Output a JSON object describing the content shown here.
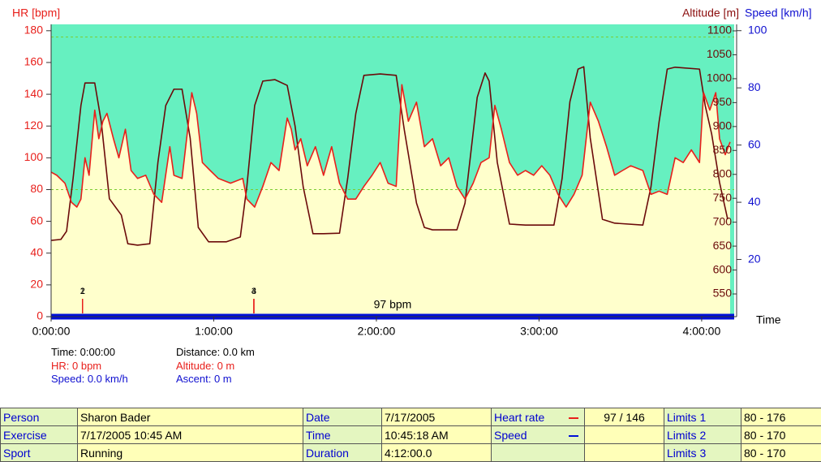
{
  "chart_data": {
    "type": "line",
    "ylabel": "HR [bpm]",
    "y2label": "Altitude [m]",
    "y3label": "Speed [km/h]",
    "xlabel": "Time",
    "xlim": [
      0,
      252
    ],
    "xticks": [
      {
        "value": 0,
        "label": "0:00:00"
      },
      {
        "value": 60,
        "label": "1:00:00"
      },
      {
        "value": 120,
        "label": "2:00:00"
      },
      {
        "value": 180,
        "label": "3:00:00"
      },
      {
        "value": 240,
        "label": "4:00:00"
      }
    ],
    "ylim": [
      0,
      184
    ],
    "yticks": [
      0,
      20,
      40,
      60,
      80,
      100,
      120,
      140,
      160,
      180
    ],
    "y2lim": [
      502.5,
      1113.6
    ],
    "y2ticks": [
      550,
      600,
      650,
      700,
      750,
      800,
      850,
      900,
      950,
      1000,
      1050,
      1100
    ],
    "y3lim": [
      0,
      102.2
    ],
    "y3ticks": [
      20,
      40,
      60,
      80,
      100
    ],
    "hr_limits": [
      80,
      176
    ],
    "series": [
      {
        "name": "Heart rate",
        "color": "#e8201c",
        "axis": "y",
        "fill": "#ffffcc",
        "x": [
          0,
          2.1,
          5.1,
          7.5,
          9.5,
          11.0,
          12.5,
          14.0,
          16.1,
          17.6,
          19.1,
          20.6,
          23.0,
          25.0,
          27.4,
          29.5,
          31.9,
          34.9,
          37.9,
          40.8,
          43.8,
          45.3,
          48.3,
          50.4,
          51.9,
          53.7,
          55.8,
          58.7,
          61.7,
          66.2,
          70.7,
          72.2,
          75.1,
          78.1,
          81.1,
          84.1,
          87.1,
          88.6,
          90.0,
          92.1,
          94.5,
          97.5,
          100.5,
          103.5,
          106.4,
          109.4,
          112.4,
          115.4,
          118.4,
          121.4,
          124.3,
          127.3,
          129.4,
          131.8,
          134.8,
          137.7,
          140.7,
          143.7,
          146.7,
          149.7,
          152.7,
          155.7,
          158.6,
          161.6,
          163.7,
          166.1,
          169.1,
          172.1,
          175.0,
          178.0,
          181.0,
          184.0,
          187.0,
          190.0,
          192.9,
          195.9,
          198.9,
          201.9,
          204.9,
          207.9,
          210.8,
          213.8,
          218.3,
          221.3,
          224.3,
          227.3,
          230.2,
          233.2,
          236.2,
          239.2,
          240.7,
          243.0,
          245.2,
          246.6,
          248.7,
          250.5
        ],
        "values": [
          91,
          89,
          84,
          72,
          69,
          74,
          100,
          89,
          130,
          112,
          123,
          128,
          112,
          100,
          118,
          92,
          87,
          89,
          77,
          72,
          107,
          89,
          87,
          118,
          141,
          128,
          97,
          92,
          87,
          84,
          87,
          74,
          69,
          82,
          97,
          92,
          125,
          118,
          105,
          112,
          95,
          107,
          89,
          107,
          84,
          74,
          74,
          82,
          89,
          97,
          84,
          82,
          146,
          123,
          135,
          107,
          112,
          95,
          100,
          82,
          74,
          84,
          97,
          100,
          133,
          118,
          97,
          89,
          92,
          89,
          95,
          89,
          77,
          69,
          77,
          89,
          135,
          123,
          107,
          89,
          92,
          95,
          92,
          77,
          79,
          77,
          100,
          97,
          105,
          97,
          141,
          130,
          141,
          112,
          102,
          110
        ]
      },
      {
        "name": "Altitude",
        "color": "#6b0a0a",
        "axis": "y2",
        "x": [
          0,
          3.6,
          5.7,
          8.1,
          11.0,
          12.5,
          16.1,
          18.5,
          21.5,
          25.9,
          28.3,
          31.9,
          36.4,
          39.4,
          42.3,
          45.3,
          48.3,
          51.3,
          54.3,
          58.1,
          64.7,
          69.8,
          72.2,
          75.1,
          78.1,
          82.6,
          87.1,
          90.0,
          93.0,
          96.6,
          100.5,
          106.4,
          109.4,
          112.4,
          115.4,
          121.4,
          127.3,
          130.3,
          134.8,
          137.7,
          140.7,
          149.7,
          152.7,
          157.2,
          160.1,
          161.6,
          164.6,
          169.1,
          175.0,
          185.5,
          188.5,
          191.4,
          194.4,
          196.5,
          198.9,
          203.4,
          207.9,
          218.3,
          221.3,
          224.3,
          227.3,
          230.2,
          239.2,
          241.3,
          243.7,
          246.6,
          249.6
        ],
        "values": [
          662,
          664,
          681,
          791,
          944,
          991,
          991,
          910,
          749,
          715,
          655,
          652,
          655,
          825,
          944,
          978,
          978,
          876,
          689,
          659,
          659,
          669,
          774,
          944,
          995,
          998,
          986,
          901,
          774,
          676,
          676,
          677,
          791,
          927,
          1007,
          1010,
          1007,
          893,
          740,
          689,
          684,
          684,
          740,
          961,
          1012,
          995,
          825,
          696,
          694,
          694,
          791,
          952,
          1020,
          1025,
          876,
          706,
          698,
          694,
          774,
          910,
          1020,
          1024,
          1020,
          944,
          884,
          783,
          706
        ]
      },
      {
        "name": "Speed",
        "color": "#0010d8",
        "axis": "y3",
        "x": [
          0,
          252
        ],
        "values": [
          0,
          0
        ]
      }
    ],
    "laps": [
      {
        "label": "1",
        "x": 11.6
      },
      {
        "label": "2",
        "x": 11.6
      },
      {
        "label": "3",
        "x": 74.8
      },
      {
        "label": "4",
        "x": 74.8
      }
    ],
    "annotation": "97 bpm"
  },
  "info": {
    "left": [
      "Time: 0:00:00",
      "HR: 0 bpm",
      "Speed: 0.0 km/h"
    ],
    "right": [
      "Distance: 0.0 km",
      "Altitude: 0 m",
      "Ascent: 0 m"
    ]
  },
  "table": {
    "rows": [
      [
        "Person",
        "Sharon Bader",
        "Date",
        "7/17/2005",
        "Heart rate",
        "97 / 146",
        "Limits 1",
        "80 - 176"
      ],
      [
        "Exercise",
        "7/17/2005 10:45 AM",
        "Time",
        "10:45:18 AM",
        "Speed",
        null,
        "Limits 2",
        "80 - 170"
      ],
      [
        "Sport",
        "Running",
        "Duration",
        "4:12:00.0",
        null,
        null,
        "Limits 3",
        "80 - 170"
      ]
    ]
  }
}
